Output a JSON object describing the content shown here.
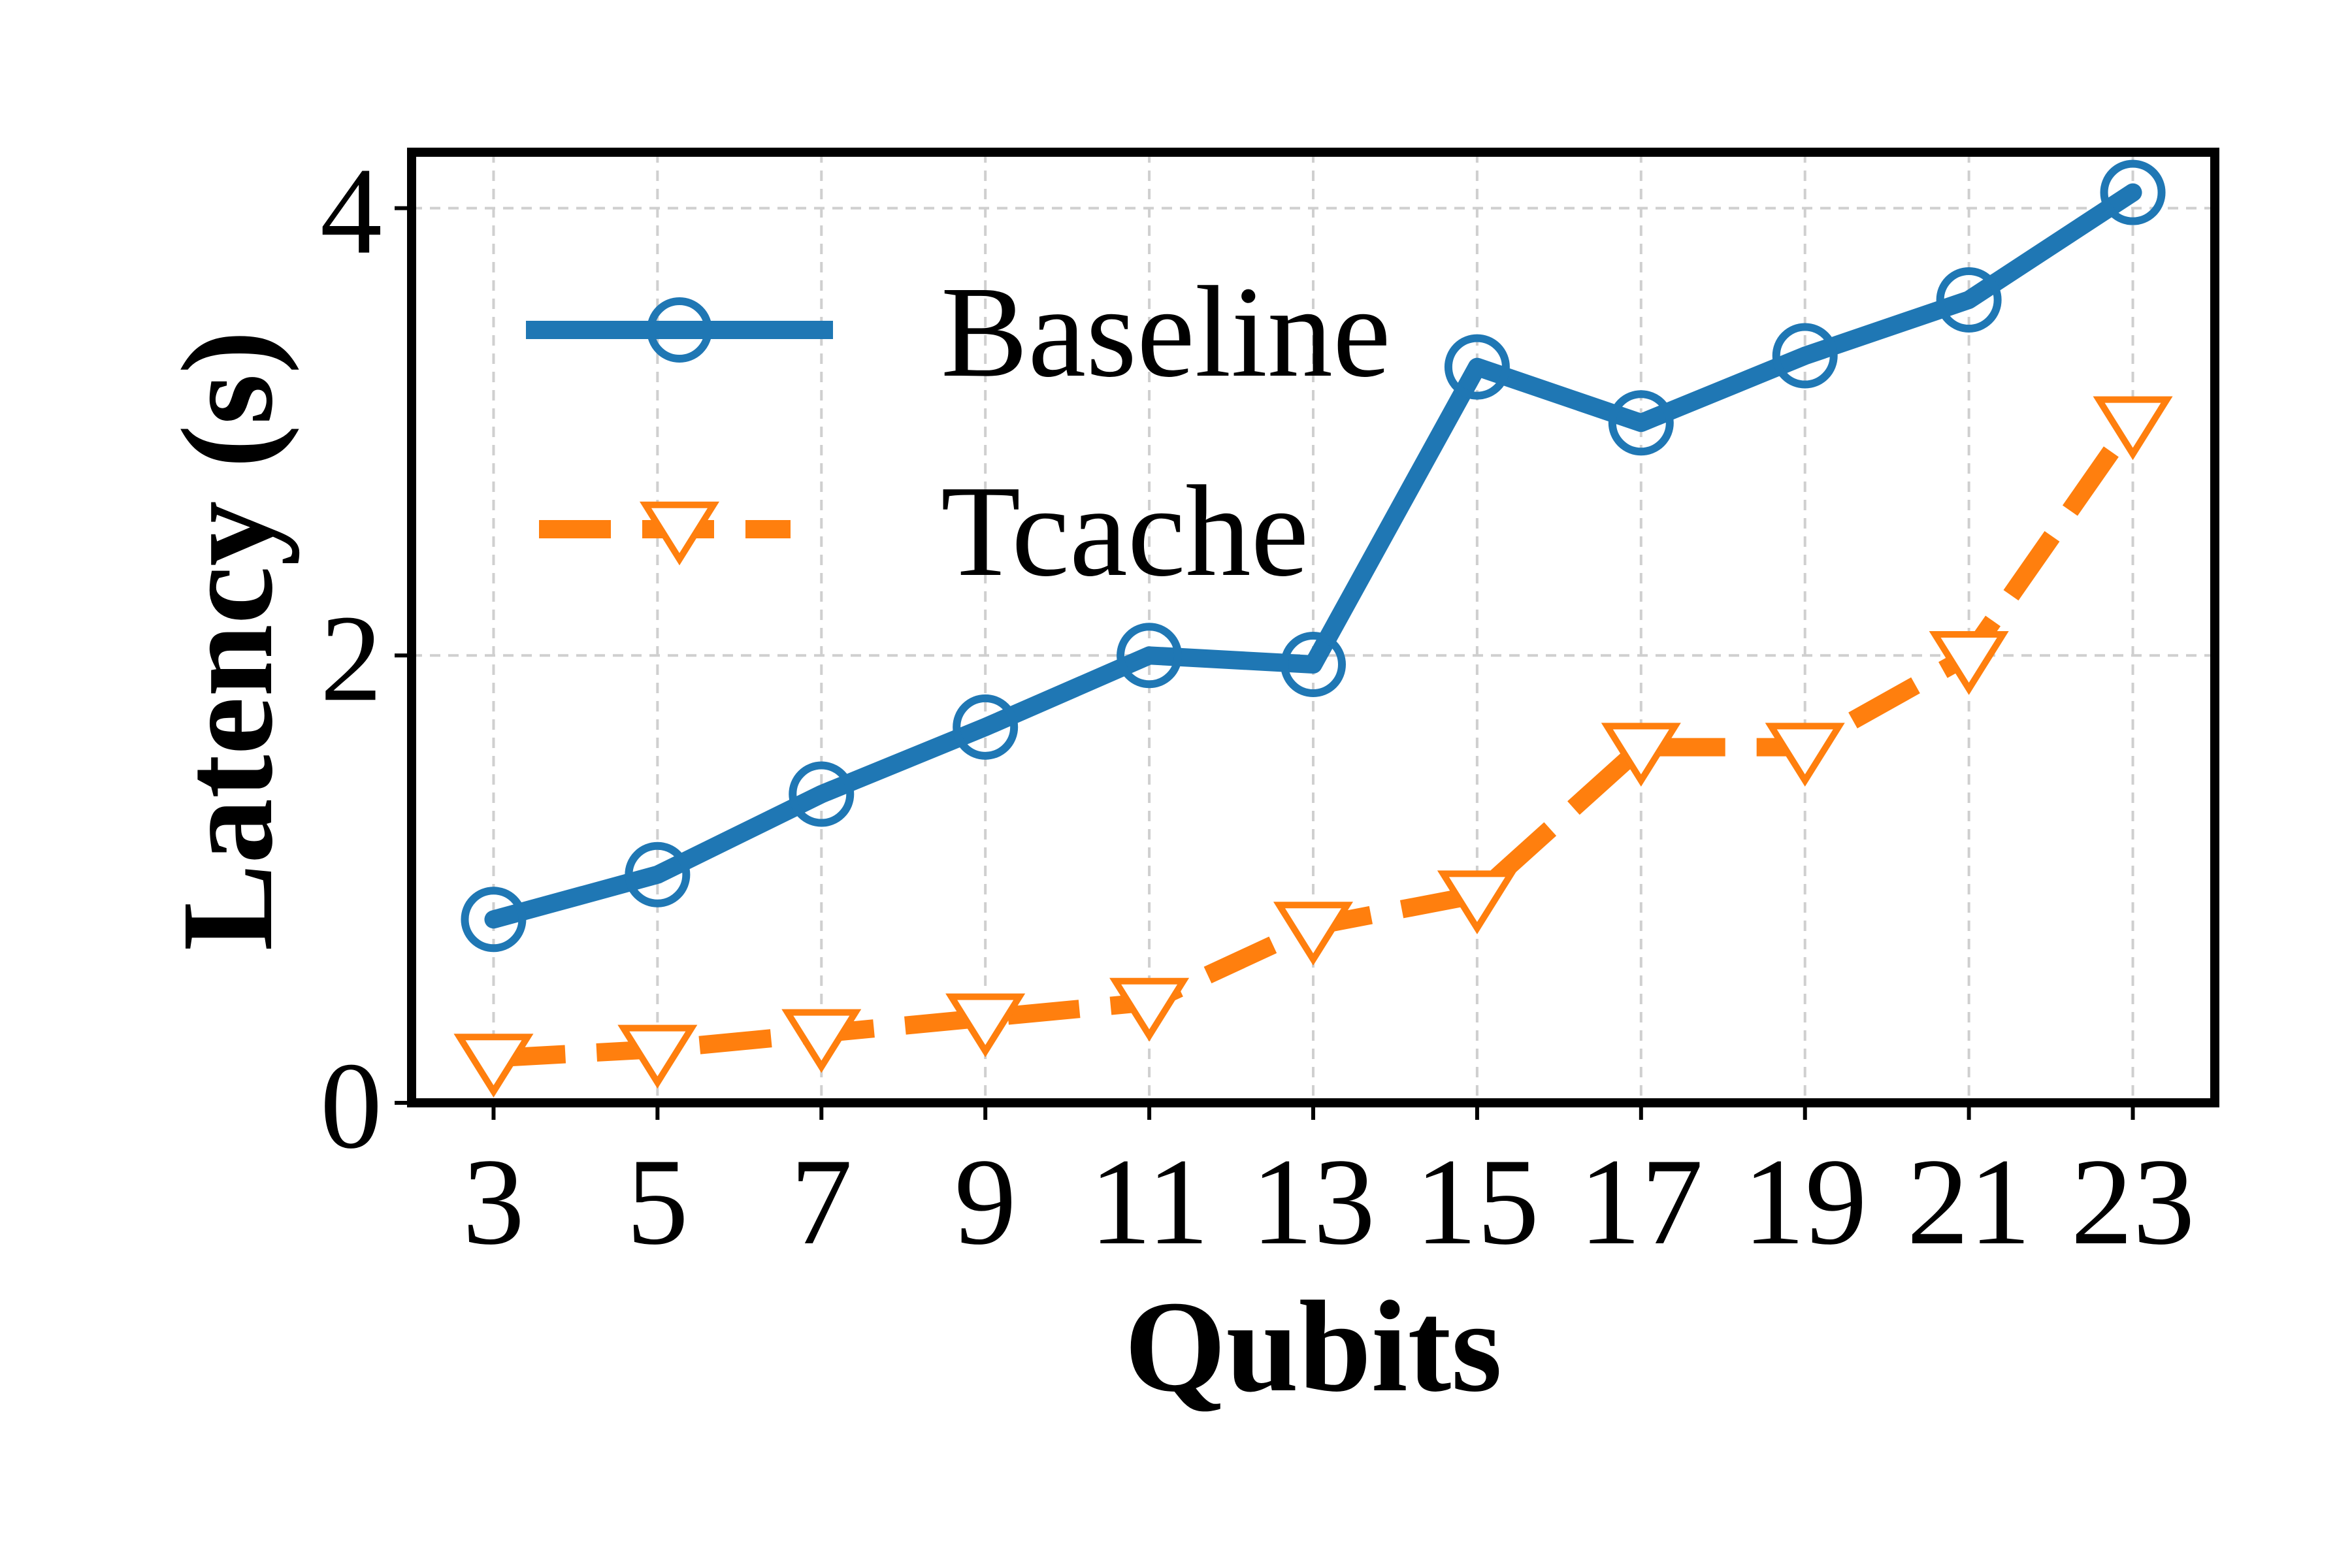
{
  "chart_data": {
    "type": "line",
    "title": "",
    "xlabel": "Qubits",
    "ylabel": "Latency (s)",
    "x": [
      3,
      5,
      7,
      9,
      11,
      13,
      15,
      17,
      19,
      21,
      23
    ],
    "xlim": [
      2,
      24
    ],
    "ylim": [
      0,
      4.25
    ],
    "yticks": [
      0,
      2,
      4
    ],
    "grid": true,
    "legend_position": "upper-left",
    "series": [
      {
        "name": "Baseline",
        "color": "#1f77b4",
        "line_style": "solid",
        "marker": "circle",
        "values": [
          0.82,
          1.02,
          1.38,
          1.68,
          2.0,
          1.96,
          3.29,
          3.04,
          3.34,
          3.59,
          4.07
        ]
      },
      {
        "name": "Tcache",
        "color": "#ff7f0e",
        "line_style": "dashed",
        "marker": "triangle-down",
        "values": [
          0.2,
          0.24,
          0.31,
          0.38,
          0.45,
          0.79,
          0.93,
          1.59,
          1.59,
          2.0,
          3.05
        ]
      }
    ]
  }
}
